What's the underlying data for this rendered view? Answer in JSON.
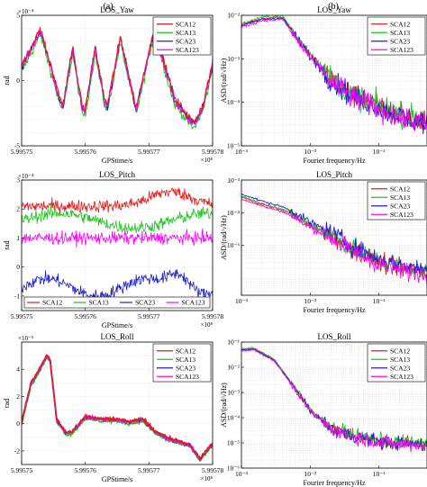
{
  "figure": {
    "col_labels": [
      "(a)",
      "(b)"
    ]
  },
  "colors": {
    "SCA12": "#e41a1c",
    "SCA13": "#22c322",
    "SCA23": "#1f1fc8",
    "SCA123": "#ff00ff"
  },
  "chart_data": [
    {
      "id": "a1",
      "type": "line",
      "title": "LOS_Yaw",
      "xlabel": "GPStime/s",
      "ylabel": "rad",
      "xlim": [
        5.99575,
        5.99578
      ],
      "ylim": [
        -5,
        5
      ],
      "x_ticks": [
        "5.99575",
        "5.99576",
        "5.99577",
        "5.99578"
      ],
      "y_ticks": [
        "-5",
        "0",
        "5"
      ],
      "x_exponent": "×10⁸",
      "y_exponent": "×10⁻⁴",
      "grid": true,
      "legend": "top-right",
      "legend_entries": [
        "SCA12",
        "SCA13",
        "SCA23",
        "SCA123"
      ],
      "series_time_knots": [
        5.99575,
        5.995753,
        5.995754,
        5.995756,
        5.9957565,
        5.995758,
        5.995758,
        5.9957595,
        5.99576,
        5.9957615,
        5.9957615,
        5.995763,
        5.9957635,
        5.9957655,
        5.995768,
        5.9957705,
        5.9957715,
        5.995774,
        5.995777,
        5.9957785,
        5.99578
      ],
      "series_value_knots": [
        1.0,
        3.8,
        2.0,
        -1.5,
        -2.0,
        2.3,
        2.5,
        -2.2,
        -2.4,
        2.3,
        2.5,
        -1.5,
        -2.0,
        3.2,
        -2.3,
        3.2,
        2.8,
        -1.5,
        -3.4,
        -2.0,
        1.2
      ]
    },
    {
      "id": "b1",
      "type": "line",
      "title": "LOS_Yaw",
      "xlabel": "Fourier frequency/Hz",
      "ylabel": "ASD/(rad/√Hz)",
      "xscale": "log",
      "yscale": "log",
      "xlim": [
        0.0001,
        0.05
      ],
      "ylim": [
        1e-05,
        0.01
      ],
      "x_ticks": [
        "10⁻⁴",
        "10⁻³",
        "10⁻²"
      ],
      "y_ticks": [
        "10⁻⁵",
        "10⁻⁴",
        "10⁻³",
        "10⁻²"
      ],
      "grid": true,
      "legend": "top-right",
      "legend_entries": [
        "SCA12",
        "SCA13",
        "SCA23",
        "SCA123"
      ],
      "asd_frequency_knots": [
        0.0001,
        0.0002,
        0.0004,
        0.0006,
        0.001,
        0.002,
        0.004,
        0.01,
        0.02,
        0.05
      ],
      "asd_value_knots": [
        0.006,
        0.0085,
        0.009,
        0.0035,
        0.0012,
        0.00035,
        0.00015,
        8e-05,
        5e-05,
        3.5e-05
      ]
    },
    {
      "id": "a2",
      "type": "line",
      "title": "LOS_Pitch",
      "xlabel": "GPStime/s",
      "ylabel": "rad",
      "xlim": [
        5.99575,
        5.99578
      ],
      "ylim": [
        -1.5,
        3
      ],
      "x_ticks": [
        "5.99575",
        "5.99576",
        "5.99577",
        "5.99578"
      ],
      "y_ticks": [
        "-1",
        "0",
        "1",
        "2",
        "3"
      ],
      "x_exponent": "×10⁸",
      "y_exponent": "×10⁻⁴",
      "grid": true,
      "legend": "bottom (horizontal)",
      "legend_entries": [
        "SCA12",
        "SCA13",
        "SCA23",
        "SCA123"
      ],
      "series": [
        {
          "name": "SCA12",
          "mean": 2.1
        },
        {
          "name": "SCA13",
          "mean": 1.6
        },
        {
          "name": "SCA23",
          "mean": -0.7
        },
        {
          "name": "SCA123",
          "mean": 1.0
        }
      ]
    },
    {
      "id": "b2",
      "type": "line",
      "title": "LOS_Pitch",
      "xlabel": "Fourier frequency/Hz",
      "ylabel": "ASD/(rad/√Hz)",
      "xscale": "log",
      "yscale": "log",
      "xlim": [
        0.0001,
        0.05
      ],
      "ylim": [
        3e-07,
        0.001
      ],
      "x_ticks": [
        "10⁻⁴",
        "10⁻³",
        "10⁻²"
      ],
      "y_ticks": [
        "10⁻⁴",
        "10⁻⁵"
      ],
      "y_top_tick": "10⁻³",
      "grid": true,
      "legend": "top-right",
      "legend_entries": [
        "SCA12",
        "SCA13",
        "SCA23",
        "SCA123"
      ],
      "asd_frequency_knots": [
        0.0001,
        0.0002,
        0.0004,
        0.0006,
        0.001,
        0.002,
        0.004,
        0.01,
        0.02,
        0.05
      ],
      "asd_value_knots": [
        0.0003,
        0.00018,
        0.00012,
        8e-05,
        4e-05,
        2e-05,
        8e-06,
        3e-06,
        2e-06,
        1.5e-06
      ]
    },
    {
      "id": "a3",
      "type": "line",
      "title": "LOS_Roll",
      "xlabel": "GPStime/s",
      "ylabel": "rad",
      "xlim": [
        5.99575,
        5.99578
      ],
      "ylim": [
        -3,
        6
      ],
      "x_ticks": [
        "5.99575",
        "5.99576",
        "5.99577",
        "5.99578"
      ],
      "y_ticks": [
        "-2",
        "0",
        "2",
        "4"
      ],
      "x_exponent": "×10⁸",
      "y_exponent": "×10⁻⁵",
      "grid": true,
      "legend": "top-right",
      "legend_entries": [
        "SCA12",
        "SCA13",
        "SCA23",
        "SCA123"
      ],
      "series_time_knots": [
        5.99575,
        5.9957515,
        5.995752,
        5.995754,
        5.9957545,
        5.9957555,
        5.995757,
        5.995758,
        5.99576,
        5.9957625,
        5.995765,
        5.995767,
        5.995769,
        5.995771,
        5.995773,
        5.995775,
        5.9957765,
        5.995778,
        5.99578
      ],
      "series_value_knots": [
        0.1,
        3.0,
        3.3,
        5.0,
        4.6,
        0.3,
        -0.7,
        -0.6,
        0.5,
        0.3,
        0.3,
        0.1,
        0.3,
        -0.6,
        -1.1,
        -1.4,
        -1.6,
        -2.6,
        -1.5
      ]
    },
    {
      "id": "b3",
      "type": "line",
      "title": "LOS_Roll",
      "xlabel": "Fourier frequency/Hz",
      "ylabel": "ASD/(rad/√Hz)",
      "xscale": "log",
      "yscale": "log",
      "xlim": [
        0.0001,
        0.05
      ],
      "ylim": [
        1e-06,
        0.1
      ],
      "x_ticks": [
        "10⁻⁴",
        "10⁻³",
        "10⁻²"
      ],
      "y_ticks": [
        "10⁻¹",
        "10⁻²",
        "10⁻³",
        "10⁻⁴",
        "10⁻⁵",
        "10⁻⁶"
      ],
      "grid": true,
      "legend": "top-right",
      "legend_entries": [
        "SCA12",
        "SCA13",
        "SCA23",
        "SCA123"
      ],
      "asd_frequency_knots": [
        0.0001,
        0.00015,
        0.0003,
        0.0006,
        0.001,
        0.002,
        0.004,
        0.01,
        0.02,
        0.05
      ],
      "asd_value_knots": [
        0.05,
        0.055,
        0.02,
        0.0015,
        0.0002,
        4e-05,
        2e-05,
        1.2e-05,
        1e-05,
        9e-06
      ]
    }
  ]
}
